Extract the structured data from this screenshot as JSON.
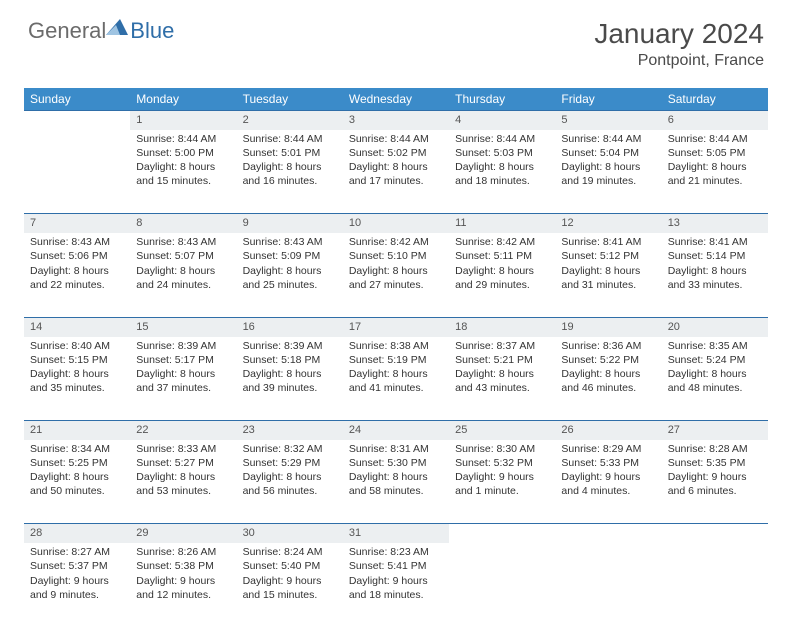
{
  "brand": {
    "general": "General",
    "blue": "Blue"
  },
  "title": "January 2024",
  "location": "Pontpoint, France",
  "colors": {
    "header_bg": "#3b8bc9",
    "header_text": "#ffffff",
    "daynum_bg": "#eceff1",
    "border": "#2f6ea8",
    "text": "#333333",
    "logo_gray": "#6b6b6b",
    "logo_blue": "#2f6ea8",
    "background": "#ffffff"
  },
  "weekdays": [
    "Sunday",
    "Monday",
    "Tuesday",
    "Wednesday",
    "Thursday",
    "Friday",
    "Saturday"
  ],
  "weeks": [
    [
      null,
      {
        "n": "1",
        "sr": "8:44 AM",
        "ss": "5:00 PM",
        "dl": "8 hours and 15 minutes."
      },
      {
        "n": "2",
        "sr": "8:44 AM",
        "ss": "5:01 PM",
        "dl": "8 hours and 16 minutes."
      },
      {
        "n": "3",
        "sr": "8:44 AM",
        "ss": "5:02 PM",
        "dl": "8 hours and 17 minutes."
      },
      {
        "n": "4",
        "sr": "8:44 AM",
        "ss": "5:03 PM",
        "dl": "8 hours and 18 minutes."
      },
      {
        "n": "5",
        "sr": "8:44 AM",
        "ss": "5:04 PM",
        "dl": "8 hours and 19 minutes."
      },
      {
        "n": "6",
        "sr": "8:44 AM",
        "ss": "5:05 PM",
        "dl": "8 hours and 21 minutes."
      }
    ],
    [
      {
        "n": "7",
        "sr": "8:43 AM",
        "ss": "5:06 PM",
        "dl": "8 hours and 22 minutes."
      },
      {
        "n": "8",
        "sr": "8:43 AM",
        "ss": "5:07 PM",
        "dl": "8 hours and 24 minutes."
      },
      {
        "n": "9",
        "sr": "8:43 AM",
        "ss": "5:09 PM",
        "dl": "8 hours and 25 minutes."
      },
      {
        "n": "10",
        "sr": "8:42 AM",
        "ss": "5:10 PM",
        "dl": "8 hours and 27 minutes."
      },
      {
        "n": "11",
        "sr": "8:42 AM",
        "ss": "5:11 PM",
        "dl": "8 hours and 29 minutes."
      },
      {
        "n": "12",
        "sr": "8:41 AM",
        "ss": "5:12 PM",
        "dl": "8 hours and 31 minutes."
      },
      {
        "n": "13",
        "sr": "8:41 AM",
        "ss": "5:14 PM",
        "dl": "8 hours and 33 minutes."
      }
    ],
    [
      {
        "n": "14",
        "sr": "8:40 AM",
        "ss": "5:15 PM",
        "dl": "8 hours and 35 minutes."
      },
      {
        "n": "15",
        "sr": "8:39 AM",
        "ss": "5:17 PM",
        "dl": "8 hours and 37 minutes."
      },
      {
        "n": "16",
        "sr": "8:39 AM",
        "ss": "5:18 PM",
        "dl": "8 hours and 39 minutes."
      },
      {
        "n": "17",
        "sr": "8:38 AM",
        "ss": "5:19 PM",
        "dl": "8 hours and 41 minutes."
      },
      {
        "n": "18",
        "sr": "8:37 AM",
        "ss": "5:21 PM",
        "dl": "8 hours and 43 minutes."
      },
      {
        "n": "19",
        "sr": "8:36 AM",
        "ss": "5:22 PM",
        "dl": "8 hours and 46 minutes."
      },
      {
        "n": "20",
        "sr": "8:35 AM",
        "ss": "5:24 PM",
        "dl": "8 hours and 48 minutes."
      }
    ],
    [
      {
        "n": "21",
        "sr": "8:34 AM",
        "ss": "5:25 PM",
        "dl": "8 hours and 50 minutes."
      },
      {
        "n": "22",
        "sr": "8:33 AM",
        "ss": "5:27 PM",
        "dl": "8 hours and 53 minutes."
      },
      {
        "n": "23",
        "sr": "8:32 AM",
        "ss": "5:29 PM",
        "dl": "8 hours and 56 minutes."
      },
      {
        "n": "24",
        "sr": "8:31 AM",
        "ss": "5:30 PM",
        "dl": "8 hours and 58 minutes."
      },
      {
        "n": "25",
        "sr": "8:30 AM",
        "ss": "5:32 PM",
        "dl": "9 hours and 1 minute."
      },
      {
        "n": "26",
        "sr": "8:29 AM",
        "ss": "5:33 PM",
        "dl": "9 hours and 4 minutes."
      },
      {
        "n": "27",
        "sr": "8:28 AM",
        "ss": "5:35 PM",
        "dl": "9 hours and 6 minutes."
      }
    ],
    [
      {
        "n": "28",
        "sr": "8:27 AM",
        "ss": "5:37 PM",
        "dl": "9 hours and 9 minutes."
      },
      {
        "n": "29",
        "sr": "8:26 AM",
        "ss": "5:38 PM",
        "dl": "9 hours and 12 minutes."
      },
      {
        "n": "30",
        "sr": "8:24 AM",
        "ss": "5:40 PM",
        "dl": "9 hours and 15 minutes."
      },
      {
        "n": "31",
        "sr": "8:23 AM",
        "ss": "5:41 PM",
        "dl": "9 hours and 18 minutes."
      },
      null,
      null,
      null
    ]
  ],
  "labels": {
    "sunrise": "Sunrise: ",
    "sunset": "Sunset: ",
    "daylight": "Daylight: "
  }
}
